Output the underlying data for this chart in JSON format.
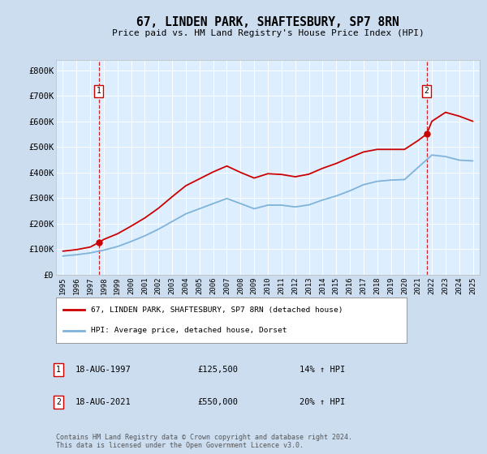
{
  "title": "67, LINDEN PARK, SHAFTESBURY, SP7 8RN",
  "subtitle": "Price paid vs. HM Land Registry's House Price Index (HPI)",
  "background_color": "#ccddf0",
  "plot_bg_color": "#ddeeff",
  "ylabel_ticks": [
    "£0",
    "£100K",
    "£200K",
    "£300K",
    "£400K",
    "£500K",
    "£600K",
    "£700K",
    "£800K"
  ],
  "ytick_values": [
    0,
    100000,
    200000,
    300000,
    400000,
    500000,
    600000,
    700000,
    800000
  ],
  "ylim": [
    0,
    840000
  ],
  "xlim_start": 1994.5,
  "xlim_end": 2025.5,
  "xticks": [
    1995,
    1996,
    1997,
    1998,
    1999,
    2000,
    2001,
    2002,
    2003,
    2004,
    2005,
    2006,
    2007,
    2008,
    2009,
    2010,
    2011,
    2012,
    2013,
    2014,
    2015,
    2016,
    2017,
    2018,
    2019,
    2020,
    2021,
    2022,
    2023,
    2024,
    2025
  ],
  "sale1_x": 1997.62,
  "sale1_y": 125500,
  "sale2_x": 2021.62,
  "sale2_y": 550000,
  "legend_line1": "67, LINDEN PARK, SHAFTESBURY, SP7 8RN (detached house)",
  "legend_line2": "HPI: Average price, detached house, Dorset",
  "annotation1_date": "18-AUG-1997",
  "annotation1_price": "£125,500",
  "annotation1_hpi": "14% ↑ HPI",
  "annotation2_date": "18-AUG-2021",
  "annotation2_price": "£550,000",
  "annotation2_hpi": "20% ↑ HPI",
  "footer": "Contains HM Land Registry data © Crown copyright and database right 2024.\nThis data is licensed under the Open Government Licence v3.0.",
  "red_color": "#cc0000",
  "blue_color": "#7fb3d9",
  "hpi_years": [
    1995,
    1996,
    1997,
    1998,
    1999,
    2000,
    2001,
    2002,
    2003,
    2004,
    2005,
    2006,
    2007,
    2008,
    2009,
    2010,
    2011,
    2012,
    2013,
    2014,
    2015,
    2016,
    2017,
    2018,
    2019,
    2020,
    2021,
    2022,
    2023,
    2024,
    2025
  ],
  "hpi_values": [
    73000,
    78000,
    85000,
    96000,
    110000,
    130000,
    152000,
    178000,
    208000,
    238000,
    258000,
    278000,
    298000,
    278000,
    258000,
    272000,
    272000,
    265000,
    273000,
    292000,
    308000,
    328000,
    352000,
    365000,
    370000,
    372000,
    420000,
    468000,
    462000,
    448000,
    445000
  ],
  "red_years": [
    1995,
    1996,
    1997,
    1997.62,
    1998,
    1999,
    2000,
    2001,
    2002,
    2003,
    2004,
    2005,
    2006,
    2007,
    2008,
    2009,
    2010,
    2011,
    2012,
    2013,
    2014,
    2015,
    2016,
    2017,
    2018,
    2019,
    2020,
    2021,
    2021.62,
    2022,
    2023,
    2024,
    2025
  ],
  "red_values": [
    92000,
    98000,
    108000,
    125500,
    138000,
    160000,
    190000,
    222000,
    260000,
    305000,
    348000,
    375000,
    402000,
    425000,
    400000,
    378000,
    395000,
    392000,
    383000,
    393000,
    416000,
    435000,
    458000,
    480000,
    490000,
    490000,
    490000,
    525000,
    550000,
    600000,
    635000,
    620000,
    600000
  ]
}
